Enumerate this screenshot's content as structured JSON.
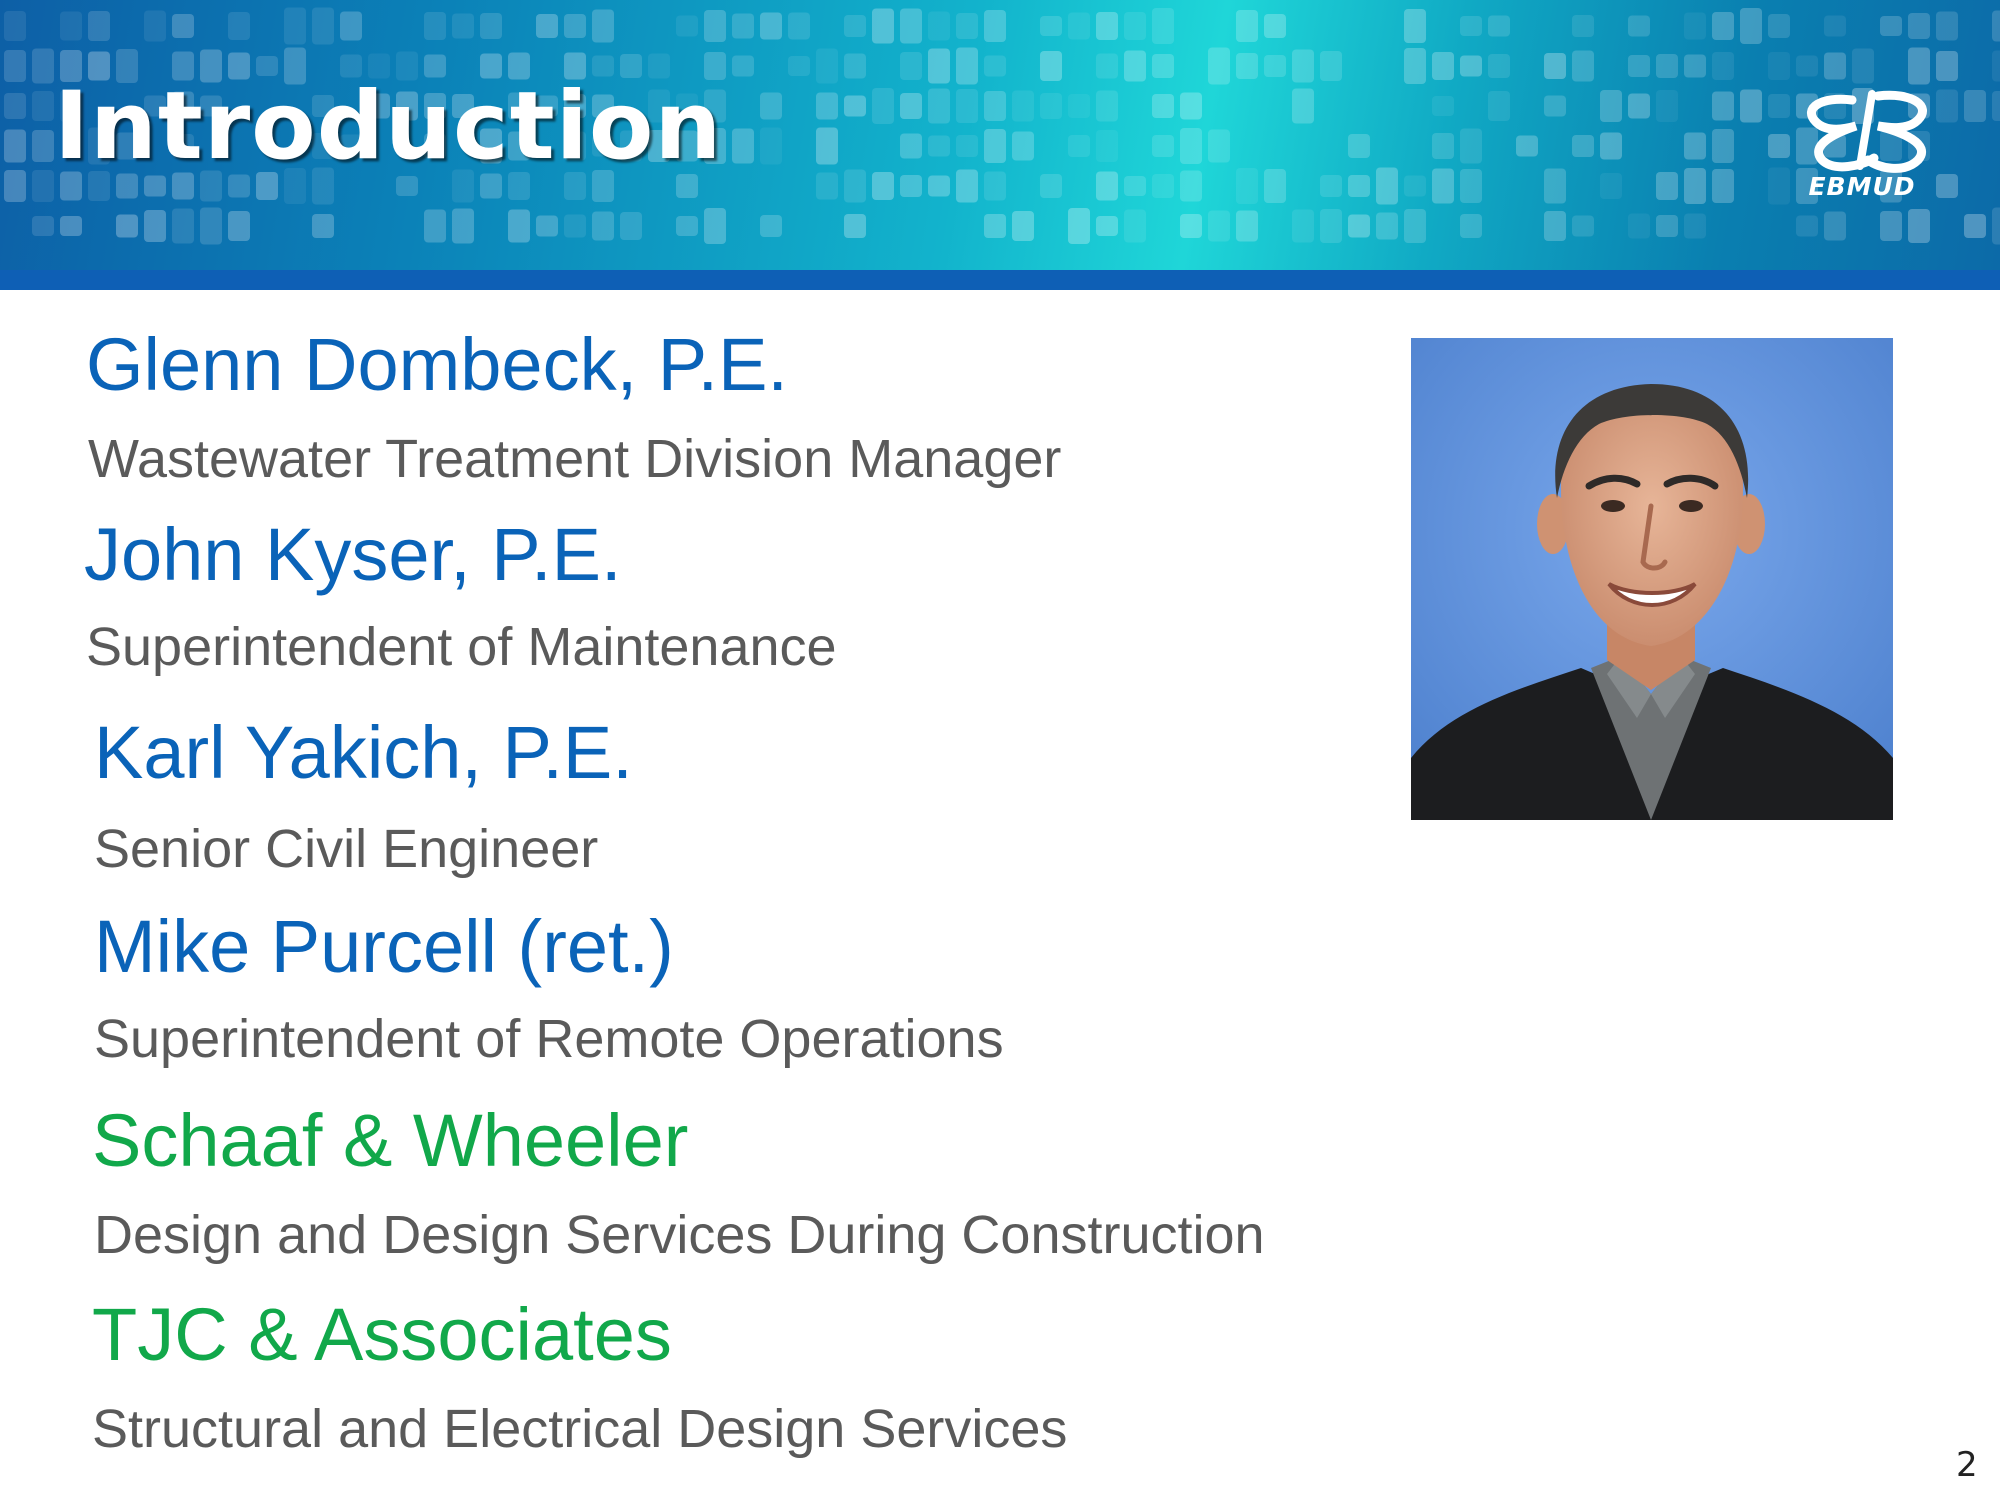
{
  "slide": {
    "title": "Introduction",
    "page_number": "2"
  },
  "logo": {
    "text": "EBMUD",
    "icon": "ebmud-logo-icon"
  },
  "people": [
    {
      "name": "Glenn Dombeck, P.E.",
      "role": "Wastewater Treatment Division Manager"
    },
    {
      "name": "John Kyser, P.E.",
      "role": "Superintendent of Maintenance"
    },
    {
      "name": "Karl Yakich, P.E.",
      "role": "Senior Civil Engineer"
    },
    {
      "name": "Mike Purcell (ret.)",
      "role": "Superintendent of Remote Operations"
    }
  ],
  "firms": [
    {
      "name": "Schaaf & Wheeler",
      "role": "Design and Design Services During Construction"
    },
    {
      "name": "TJC & Associates",
      "role": "Structural and Electrical Design Services"
    }
  ],
  "colors": {
    "person_name": "#0a63b8",
    "firm_name": "#11a84a",
    "role_text": "#5a5a5a",
    "banner_stripe": "#0e5fb5"
  }
}
